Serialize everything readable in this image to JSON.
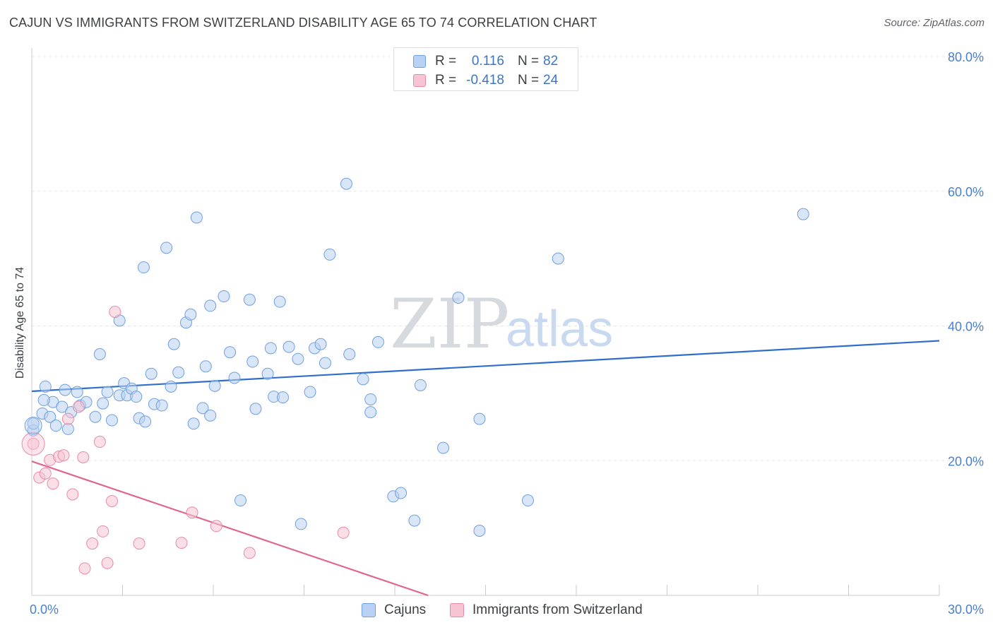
{
  "title": "CAJUN VS IMMIGRANTS FROM SWITZERLAND DISABILITY AGE 65 TO 74 CORRELATION CHART",
  "source": "Source: ZipAtlas.com",
  "watermark": {
    "zip": "ZIP",
    "atlas": "atlas"
  },
  "legend": {
    "rows": [
      {
        "r_label": "R =",
        "r_value": "0.116",
        "n_label": "N =",
        "n_value": "82",
        "color": "#6f9fe0"
      },
      {
        "r_label": "R =",
        "r_value": "-0.418",
        "n_label": "N =",
        "n_value": "24",
        "color": "#e88aa8"
      }
    ]
  },
  "bottom_legend": [
    "Cajuns",
    "Immigrants from Switzerland"
  ],
  "chart_data": {
    "type": "scatter",
    "title": "CAJUN VS IMMIGRANTS FROM SWITZERLAND DISABILITY AGE 65 TO 74 CORRELATION CHART",
    "xlabel": "",
    "ylabel": "Disability Age 65 to 74",
    "xlim": [
      0,
      30
    ],
    "ylim": [
      0,
      80
    ],
    "x_tick_labels": [
      "0.0%",
      "30.0%"
    ],
    "y_ticks": [
      20,
      40,
      60,
      80
    ],
    "y_tick_labels": [
      "20.0%",
      "40.0%",
      "60.0%",
      "80.0%"
    ],
    "grid": "horizontal dashed",
    "legend_position": "top-center",
    "series": [
      {
        "name": "Cajuns",
        "color": "#6f9fe0",
        "fill": "#b9d1f2",
        "trend": {
          "x": [
            0,
            30
          ],
          "y": [
            30.3,
            37.8
          ]
        },
        "points": [
          [
            0.05,
            24.5
          ],
          [
            0.35,
            27
          ],
          [
            0.45,
            31
          ],
          [
            0.6,
            26.5
          ],
          [
            0.7,
            28.7
          ],
          [
            0.8,
            25.2
          ],
          [
            1.0,
            28
          ],
          [
            1.1,
            30.5
          ],
          [
            1.2,
            24.7
          ],
          [
            1.3,
            27.2
          ],
          [
            1.5,
            30.2
          ],
          [
            1.6,
            28.2
          ],
          [
            1.8,
            28.7
          ],
          [
            2.1,
            26.5
          ],
          [
            2.25,
            35.8
          ],
          [
            2.35,
            28.5
          ],
          [
            2.5,
            30.2
          ],
          [
            2.65,
            26
          ],
          [
            2.9,
            29.7
          ],
          [
            2.9,
            40.8
          ],
          [
            3.05,
            31.5
          ],
          [
            3.15,
            29.7
          ],
          [
            3.3,
            30.7
          ],
          [
            3.45,
            29.5
          ],
          [
            3.55,
            26.3
          ],
          [
            3.7,
            48.7
          ],
          [
            3.75,
            25.8
          ],
          [
            3.95,
            32.9
          ],
          [
            4.05,
            28.4
          ],
          [
            4.3,
            28.2
          ],
          [
            4.45,
            51.6
          ],
          [
            4.6,
            31
          ],
          [
            4.7,
            37.3
          ],
          [
            4.85,
            33.1
          ],
          [
            5.1,
            40.5
          ],
          [
            5.25,
            41.7
          ],
          [
            5.35,
            25.5
          ],
          [
            5.45,
            56.1
          ],
          [
            5.65,
            27.8
          ],
          [
            5.75,
            34
          ],
          [
            5.9,
            43
          ],
          [
            6.05,
            31.1
          ],
          [
            6.35,
            44.4
          ],
          [
            6.55,
            36.1
          ],
          [
            6.7,
            32.3
          ],
          [
            6.9,
            14.1
          ],
          [
            7.2,
            43.9
          ],
          [
            7.3,
            34.7
          ],
          [
            7.4,
            27.7
          ],
          [
            7.8,
            32.9
          ],
          [
            7.9,
            36.7
          ],
          [
            8.0,
            29.5
          ],
          [
            8.2,
            43.6
          ],
          [
            8.3,
            29.4
          ],
          [
            8.5,
            36.9
          ],
          [
            8.8,
            35.1
          ],
          [
            8.9,
            10.6
          ],
          [
            9.2,
            30.2
          ],
          [
            9.35,
            36.7
          ],
          [
            9.55,
            37.3
          ],
          [
            9.7,
            34.5
          ],
          [
            9.85,
            50.6
          ],
          [
            10.5,
            35.8
          ],
          [
            10.4,
            61.1
          ],
          [
            10.95,
            32.1
          ],
          [
            11.2,
            29.1
          ],
          [
            11.2,
            27.2
          ],
          [
            11.45,
            37.6
          ],
          [
            11.95,
            14.7
          ],
          [
            12.2,
            15.2
          ],
          [
            12.65,
            11.1
          ],
          [
            12.85,
            31.2
          ],
          [
            13.6,
            21.9
          ],
          [
            14.1,
            44.2
          ],
          [
            14.8,
            26.2
          ],
          [
            14.8,
            9.6
          ],
          [
            16.4,
            14.1
          ],
          [
            17.4,
            50
          ],
          [
            25.5,
            56.6
          ],
          [
            0.05,
            25.5
          ],
          [
            0.4,
            29
          ],
          [
            5.9,
            26.7
          ]
        ]
      },
      {
        "name": "Immigrants from Switzerland",
        "color": "#e88aa8",
        "fill": "#f7c4d4",
        "trend": {
          "x": [
            0,
            13.1
          ],
          "y": [
            19.9,
            0
          ]
        },
        "points": [
          [
            0.05,
            22.5
          ],
          [
            0.25,
            17.5
          ],
          [
            0.45,
            18.1
          ],
          [
            0.6,
            20.1
          ],
          [
            0.7,
            16.6
          ],
          [
            0.9,
            20.6
          ],
          [
            1.05,
            20.8
          ],
          [
            1.2,
            26.2
          ],
          [
            1.35,
            15
          ],
          [
            1.55,
            28
          ],
          [
            1.7,
            20.5
          ],
          [
            1.75,
            4
          ],
          [
            2.0,
            7.7
          ],
          [
            2.25,
            22.8
          ],
          [
            2.35,
            9.5
          ],
          [
            2.5,
            4.8
          ],
          [
            2.65,
            14
          ],
          [
            2.75,
            42.1
          ],
          [
            3.55,
            7.7
          ],
          [
            4.95,
            7.8
          ],
          [
            5.3,
            12.3
          ],
          [
            6.1,
            10.3
          ],
          [
            7.2,
            6.3
          ],
          [
            10.3,
            9.3
          ]
        ]
      }
    ]
  }
}
